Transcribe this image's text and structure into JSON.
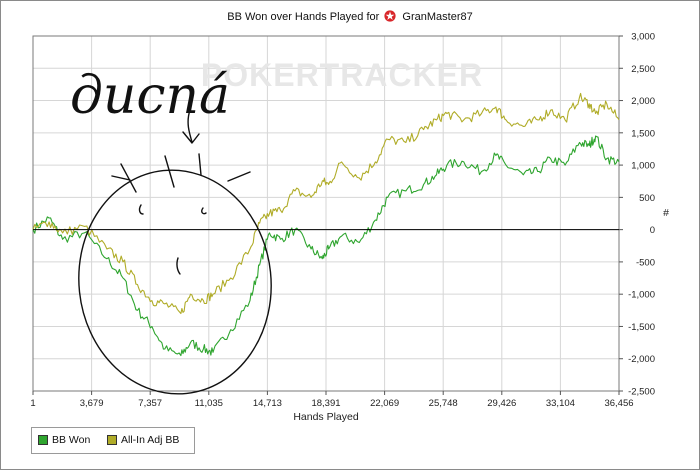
{
  "title": {
    "prefix": "BB Won over Hands Played for",
    "player": "GranMaster87"
  },
  "watermark": "POKERTRACKER",
  "annotation_text": "дисná",
  "legend": {
    "items": [
      {
        "label": "BB Won",
        "color": "#2fa52f"
      },
      {
        "label": "All-In Adj BB",
        "color": "#b0ac28"
      }
    ]
  },
  "colors": {
    "bb_won": "#2fa52f",
    "allin_adj": "#b0ac28",
    "zero_line": "#000000",
    "grid": "#d6d6d6"
  },
  "chart_data": {
    "type": "line",
    "xlabel": "Hands Played",
    "ylabel": "#",
    "xlim": [
      1,
      36456
    ],
    "ylim": [
      -2500,
      3000
    ],
    "x_ticks": [
      "1",
      "3,679",
      "7,357",
      "11,035",
      "14,713",
      "18,391",
      "22,069",
      "25,748",
      "29,426",
      "33,104",
      "36,456"
    ],
    "y_ticks": [
      "3,000",
      "2,500",
      "2,000",
      "1,500",
      "1,000",
      "500",
      "0",
      "-500",
      "-1,000",
      "-1,500",
      "-2,000",
      "-2,500"
    ],
    "grid": true,
    "legend_position": "bottom-left",
    "x": [
      1,
      1000,
      1840,
      3200,
      4600,
      5600,
      6500,
      7400,
      8200,
      9200,
      9800,
      10600,
      11200,
      12300,
      13500,
      14100,
      14713,
      15400,
      16300,
      17300,
      18000,
      18391,
      19200,
      20300,
      21300,
      22069,
      23200,
      24300,
      25100,
      25748,
      26800,
      27900,
      28800,
      29426,
      30500,
      31400,
      32200,
      33104,
      34000,
      34600,
      35000,
      35700,
      36456
    ],
    "series": [
      {
        "name": "BB Won",
        "values": [
          0,
          180,
          -150,
          -50,
          -450,
          -750,
          -1250,
          -1500,
          -1850,
          -1950,
          -1750,
          -1850,
          -1900,
          -1550,
          -1100,
          -550,
          -50,
          -150,
          0,
          -300,
          -450,
          -300,
          -100,
          -200,
          150,
          500,
          600,
          700,
          850,
          1000,
          1050,
          900,
          1150,
          1000,
          850,
          900,
          1100,
          1000,
          1350,
          1300,
          1450,
          1100,
          1050
        ]
      },
      {
        "name": "All-In Adj BB",
        "values": [
          0,
          120,
          -50,
          50,
          -300,
          -500,
          -850,
          -1100,
          -1150,
          -1300,
          -1000,
          -1100,
          -1000,
          -750,
          -300,
          100,
          250,
          300,
          600,
          500,
          750,
          700,
          1050,
          800,
          1050,
          1400,
          1350,
          1550,
          1700,
          1800,
          1700,
          1800,
          1900,
          1700,
          1600,
          1700,
          1850,
          1700,
          2050,
          1950,
          1800,
          1950,
          1700
        ]
      }
    ]
  }
}
